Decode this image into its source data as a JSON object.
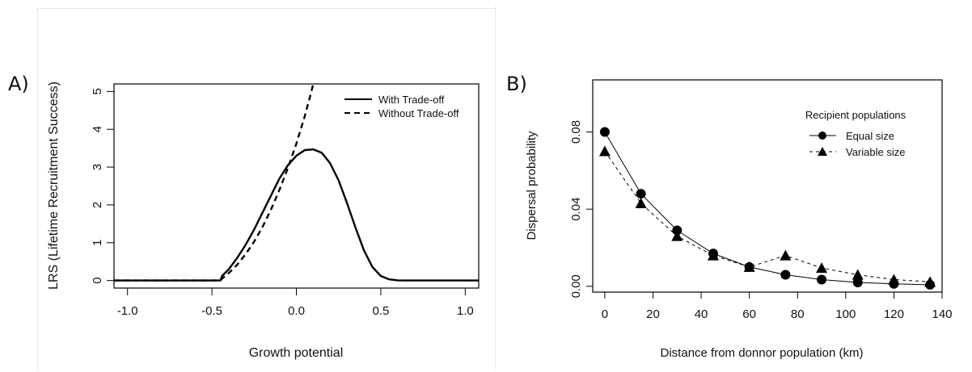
{
  "chart_data": [
    {
      "panel_label": "A)",
      "type": "line",
      "xlabel": "Growth potential",
      "ylabel": "LRS (Lifetime Recruitment Success)",
      "xlim": [
        -1.08,
        1.08
      ],
      "ylim": [
        -0.2,
        5.2
      ],
      "x_ticks": [
        -1.0,
        -0.5,
        0.0,
        0.5,
        1.0
      ],
      "x_tick_labels": [
        "-1.0",
        "-0.5",
        "0.0",
        "0.5",
        "1.0"
      ],
      "y_ticks": [
        0,
        1,
        2,
        3,
        4,
        5
      ],
      "y_tick_labels": [
        "0",
        "1",
        "2",
        "3",
        "4",
        "5"
      ],
      "legend_position": "top-right",
      "series": [
        {
          "name": "With Trade-off",
          "style": "solid",
          "x": [
            -1.08,
            -0.45,
            -0.44,
            -0.4,
            -0.35,
            -0.3,
            -0.25,
            -0.2,
            -0.15,
            -0.1,
            -0.05,
            0.0,
            0.05,
            0.1,
            0.15,
            0.2,
            0.25,
            0.3,
            0.35,
            0.4,
            0.45,
            0.5,
            0.55,
            0.6,
            0.65,
            1.08
          ],
          "y": [
            0,
            0,
            0.12,
            0.3,
            0.6,
            0.95,
            1.35,
            1.8,
            2.25,
            2.7,
            3.05,
            3.3,
            3.45,
            3.47,
            3.38,
            3.1,
            2.65,
            2.05,
            1.4,
            0.8,
            0.36,
            0.12,
            0.03,
            0.005,
            0,
            0
          ]
        },
        {
          "name": "Without Trade-off",
          "style": "dashed",
          "x": [
            -1.08,
            -0.45,
            -0.44,
            -0.4,
            -0.35,
            -0.3,
            -0.25,
            -0.2,
            -0.15,
            -0.1,
            -0.05,
            0.0,
            0.05,
            0.08,
            0.1
          ],
          "y": [
            0,
            0,
            0.05,
            0.2,
            0.42,
            0.7,
            1.03,
            1.42,
            1.88,
            2.4,
            2.98,
            3.62,
            4.35,
            4.85,
            5.2
          ]
        }
      ]
    },
    {
      "panel_label": "B)",
      "type": "line",
      "xlabel": "Distance from donnor population (km)",
      "ylabel": "Dispersal probability",
      "xlim": [
        -5,
        140
      ],
      "ylim": [
        -0.003,
        0.107
      ],
      "x_ticks": [
        0,
        20,
        40,
        60,
        80,
        100,
        120,
        140
      ],
      "x_tick_labels": [
        "0",
        "20",
        "40",
        "60",
        "80",
        "100",
        "120",
        "140"
      ],
      "y_ticks": [
        0.0,
        0.04,
        0.08
      ],
      "y_tick_labels": [
        "0.00",
        "0.04",
        "0.08"
      ],
      "legend_title": "Recipient populations",
      "legend_position": "top-right",
      "series": [
        {
          "name": "Equal size",
          "style": "solid",
          "marker": "circle",
          "x": [
            0,
            15,
            30,
            45,
            60,
            75,
            90,
            105,
            120,
            135
          ],
          "y": [
            0.08,
            0.048,
            0.029,
            0.017,
            0.01,
            0.006,
            0.0035,
            0.002,
            0.0013,
            0.0008
          ]
        },
        {
          "name": "Variable size",
          "style": "dashed",
          "marker": "triangle",
          "x": [
            0,
            15,
            30,
            45,
            60,
            75,
            90,
            105,
            120,
            135
          ],
          "y": [
            0.07,
            0.043,
            0.026,
            0.016,
            0.01,
            0.016,
            0.0095,
            0.006,
            0.0035,
            0.0023
          ]
        }
      ]
    }
  ]
}
